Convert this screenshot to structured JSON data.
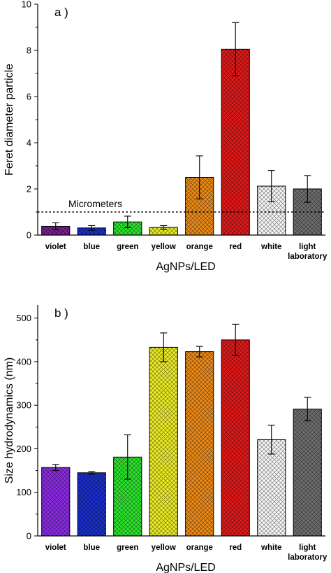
{
  "chart_data": [
    {
      "type": "bar",
      "panel_label": "a )",
      "xlabel": "AgNPs/LED",
      "ylabel": "Feret diameter particle",
      "ylim": [
        0,
        10
      ],
      "yticks": [
        0,
        2,
        4,
        6,
        8,
        10
      ],
      "grid": false,
      "categories": [
        [
          "violet"
        ],
        [
          "blue"
        ],
        [
          "green"
        ],
        [
          "yellow"
        ],
        [
          "orange"
        ],
        [
          "red"
        ],
        [
          "white"
        ],
        [
          "light",
          "laboratory"
        ]
      ],
      "values": [
        0.38,
        0.31,
        0.57,
        0.33,
        2.5,
        8.05,
        2.12,
        2.0
      ],
      "errors": [
        0.15,
        0.1,
        0.25,
        0.08,
        0.93,
        1.15,
        0.68,
        0.58
      ],
      "colors": [
        "#7a1f8f",
        "#1a2fc9",
        "#2ee02e",
        "#e8e82a",
        "#e88a1a",
        "#e01a1a",
        "#f4f4f4",
        "#6e6e6e"
      ],
      "reference_line": {
        "y": 1.0,
        "label": "Micrometers"
      }
    },
    {
      "type": "bar",
      "panel_label": "b )",
      "xlabel": "AgNPs/LED",
      "ylabel": "Size hydrodynamics (nm)",
      "ylim": [
        0,
        530
      ],
      "yticks": [
        0,
        100,
        200,
        300,
        400,
        500
      ],
      "grid": false,
      "categories": [
        [
          "violet"
        ],
        [
          "blue"
        ],
        [
          "green"
        ],
        [
          "yellow"
        ],
        [
          "orange"
        ],
        [
          "red"
        ],
        [
          "white"
        ],
        [
          "light",
          "laboratory"
        ]
      ],
      "values": [
        157,
        145,
        181,
        433,
        423,
        450,
        221,
        291
      ],
      "errors": [
        7,
        3,
        51,
        33,
        12,
        36,
        33,
        27
      ],
      "colors": [
        "#8a2be2",
        "#1a2fc9",
        "#2ee02e",
        "#e8e82a",
        "#e88a1a",
        "#e01a1a",
        "#f4f4f4",
        "#6e6e6e"
      ]
    }
  ]
}
